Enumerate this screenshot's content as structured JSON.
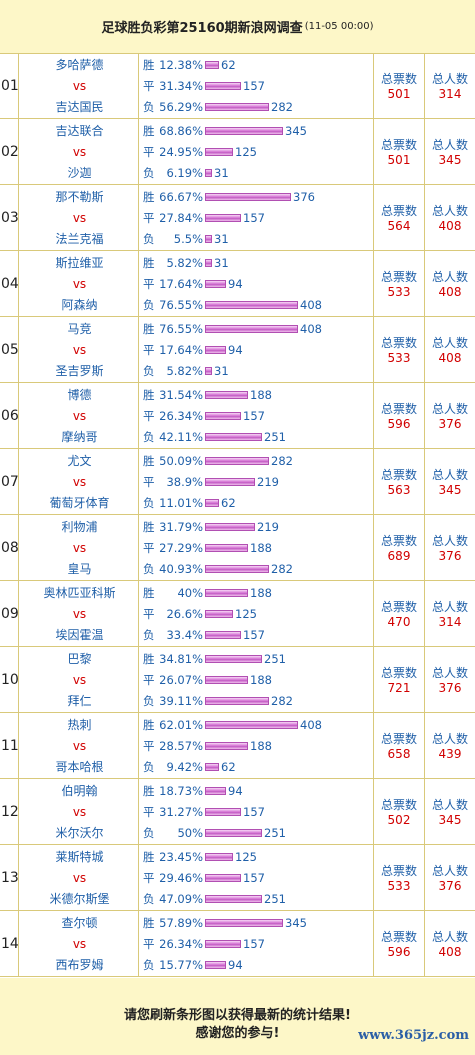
{
  "header": {
    "title": "足球胜负彩第25160期新浪网调查",
    "date": "(11-05 00:00)"
  },
  "labels": {
    "vs": "vs",
    "win": "胜",
    "draw": "平",
    "lose": "负",
    "total_votes": "总票数",
    "total_people": "总人数"
  },
  "matches": [
    {
      "no": "01",
      "home": "多哈萨德",
      "away": "吉达国民",
      "win": {
        "pct": "12.38%",
        "count": "62",
        "value": 62
      },
      "draw": {
        "pct": "31.34%",
        "count": "157",
        "value": 157
      },
      "lose": {
        "pct": "56.29%",
        "count": "282",
        "value": 282
      },
      "votes": "501",
      "people": "314"
    },
    {
      "no": "02",
      "home": "吉达联合",
      "away": "沙迦",
      "win": {
        "pct": "68.86%",
        "count": "345",
        "value": 345
      },
      "draw": {
        "pct": "24.95%",
        "count": "125",
        "value": 125
      },
      "lose": {
        "pct": "6.19%",
        "count": "31",
        "value": 31
      },
      "votes": "501",
      "people": "345"
    },
    {
      "no": "03",
      "home": "那不勒斯",
      "away": "法兰克福",
      "win": {
        "pct": "66.67%",
        "count": "376",
        "value": 376
      },
      "draw": {
        "pct": "27.84%",
        "count": "157",
        "value": 157
      },
      "lose": {
        "pct": "5.5%",
        "count": "31",
        "value": 31
      },
      "votes": "564",
      "people": "408"
    },
    {
      "no": "04",
      "home": "斯拉维亚",
      "away": "阿森纳",
      "win": {
        "pct": "5.82%",
        "count": "31",
        "value": 31
      },
      "draw": {
        "pct": "17.64%",
        "count": "94",
        "value": 94
      },
      "lose": {
        "pct": "76.55%",
        "count": "408",
        "value": 408
      },
      "votes": "533",
      "people": "408"
    },
    {
      "no": "05",
      "home": "马竞",
      "away": "圣吉罗斯",
      "win": {
        "pct": "76.55%",
        "count": "408",
        "value": 408
      },
      "draw": {
        "pct": "17.64%",
        "count": "94",
        "value": 94
      },
      "lose": {
        "pct": "5.82%",
        "count": "31",
        "value": 31
      },
      "votes": "533",
      "people": "408"
    },
    {
      "no": "06",
      "home": "博德",
      "away": "摩纳哥",
      "win": {
        "pct": "31.54%",
        "count": "188",
        "value": 188
      },
      "draw": {
        "pct": "26.34%",
        "count": "157",
        "value": 157
      },
      "lose": {
        "pct": "42.11%",
        "count": "251",
        "value": 251
      },
      "votes": "596",
      "people": "376"
    },
    {
      "no": "07",
      "home": "尤文",
      "away": "葡萄牙体育",
      "win": {
        "pct": "50.09%",
        "count": "282",
        "value": 282
      },
      "draw": {
        "pct": "38.9%",
        "count": "219",
        "value": 219
      },
      "lose": {
        "pct": "11.01%",
        "count": "62",
        "value": 62
      },
      "votes": "563",
      "people": "345"
    },
    {
      "no": "08",
      "home": "利物浦",
      "away": "皇马",
      "win": {
        "pct": "31.79%",
        "count": "219",
        "value": 219
      },
      "draw": {
        "pct": "27.29%",
        "count": "188",
        "value": 188
      },
      "lose": {
        "pct": "40.93%",
        "count": "282",
        "value": 282
      },
      "votes": "689",
      "people": "376"
    },
    {
      "no": "09",
      "home": "奥林匹亚科斯",
      "away": "埃因霍温",
      "win": {
        "pct": "40%",
        "count": "188",
        "value": 188
      },
      "draw": {
        "pct": "26.6%",
        "count": "125",
        "value": 125
      },
      "lose": {
        "pct": "33.4%",
        "count": "157",
        "value": 157
      },
      "votes": "470",
      "people": "314"
    },
    {
      "no": "10",
      "home": "巴黎",
      "away": "拜仁",
      "win": {
        "pct": "34.81%",
        "count": "251",
        "value": 251
      },
      "draw": {
        "pct": "26.07%",
        "count": "188",
        "value": 188
      },
      "lose": {
        "pct": "39.11%",
        "count": "282",
        "value": 282
      },
      "votes": "721",
      "people": "376"
    },
    {
      "no": "11",
      "home": "热刺",
      "away": "哥本哈根",
      "win": {
        "pct": "62.01%",
        "count": "408",
        "value": 408
      },
      "draw": {
        "pct": "28.57%",
        "count": "188",
        "value": 188
      },
      "lose": {
        "pct": "9.42%",
        "count": "62",
        "value": 62
      },
      "votes": "658",
      "people": "439"
    },
    {
      "no": "12",
      "home": "伯明翰",
      "away": "米尔沃尔",
      "win": {
        "pct": "18.73%",
        "count": "94",
        "value": 94
      },
      "draw": {
        "pct": "31.27%",
        "count": "157",
        "value": 157
      },
      "lose": {
        "pct": "50%",
        "count": "251",
        "value": 251
      },
      "votes": "502",
      "people": "345"
    },
    {
      "no": "13",
      "home": "莱斯特城",
      "away": "米德尔斯堡",
      "win": {
        "pct": "23.45%",
        "count": "125",
        "value": 125
      },
      "draw": {
        "pct": "29.46%",
        "count": "157",
        "value": 157
      },
      "lose": {
        "pct": "47.09%",
        "count": "251",
        "value": 251
      },
      "votes": "533",
      "people": "376"
    },
    {
      "no": "14",
      "home": "查尔顿",
      "away": "西布罗姆",
      "win": {
        "pct": "57.89%",
        "count": "345",
        "value": 345
      },
      "draw": {
        "pct": "26.34%",
        "count": "157",
        "value": 157
      },
      "lose": {
        "pct": "15.77%",
        "count": "94",
        "value": 94
      },
      "votes": "596",
      "people": "408"
    }
  ],
  "footer": {
    "line1": "请您刷新条形图以获得最新的统计结果!",
    "line2": "感谢您的参与!",
    "watermark": "www.365jz.com"
  }
}
